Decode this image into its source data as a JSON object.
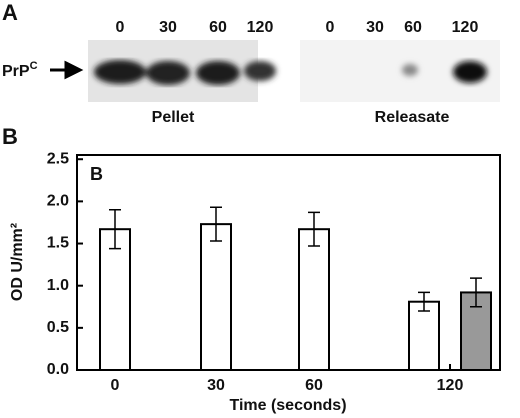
{
  "panel_a": {
    "label": "A",
    "marker": {
      "label": "PrP",
      "superscript": "C"
    },
    "pellet": {
      "title": "Pellet",
      "lanes": [
        "0",
        "30",
        "60",
        "120"
      ]
    },
    "releasate": {
      "title": "Releasate",
      "lanes": [
        "0",
        "30",
        "60",
        "120"
      ]
    }
  },
  "panel_b_label": "B",
  "chart_data": {
    "type": "bar",
    "title": "B",
    "x_label": "Time (seconds)",
    "y_label": "OD U/mm²",
    "categories": [
      "0",
      "30",
      "60",
      "120"
    ],
    "series": [
      {
        "color": "#ffffff",
        "values": [
          1.67,
          1.73,
          1.67,
          0.81
        ],
        "errors": [
          0.23,
          0.2,
          0.2,
          0.11
        ]
      },
      {
        "color": "#999999",
        "values": [
          null,
          null,
          null,
          0.92
        ],
        "errors": [
          null,
          null,
          null,
          0.17
        ]
      }
    ],
    "ylim": [
      0,
      2.55
    ],
    "yticks": [
      {
        "value": 0,
        "label": "0.0"
      },
      {
        "value": 0.5,
        "label": "0.5"
      },
      {
        "value": 1,
        "label": "1.0"
      },
      {
        "value": 1.5,
        "label": "1.5"
      },
      {
        "value": 2,
        "label": "2.0"
      },
      {
        "value": 2.5,
        "label": "2.5"
      }
    ]
  }
}
